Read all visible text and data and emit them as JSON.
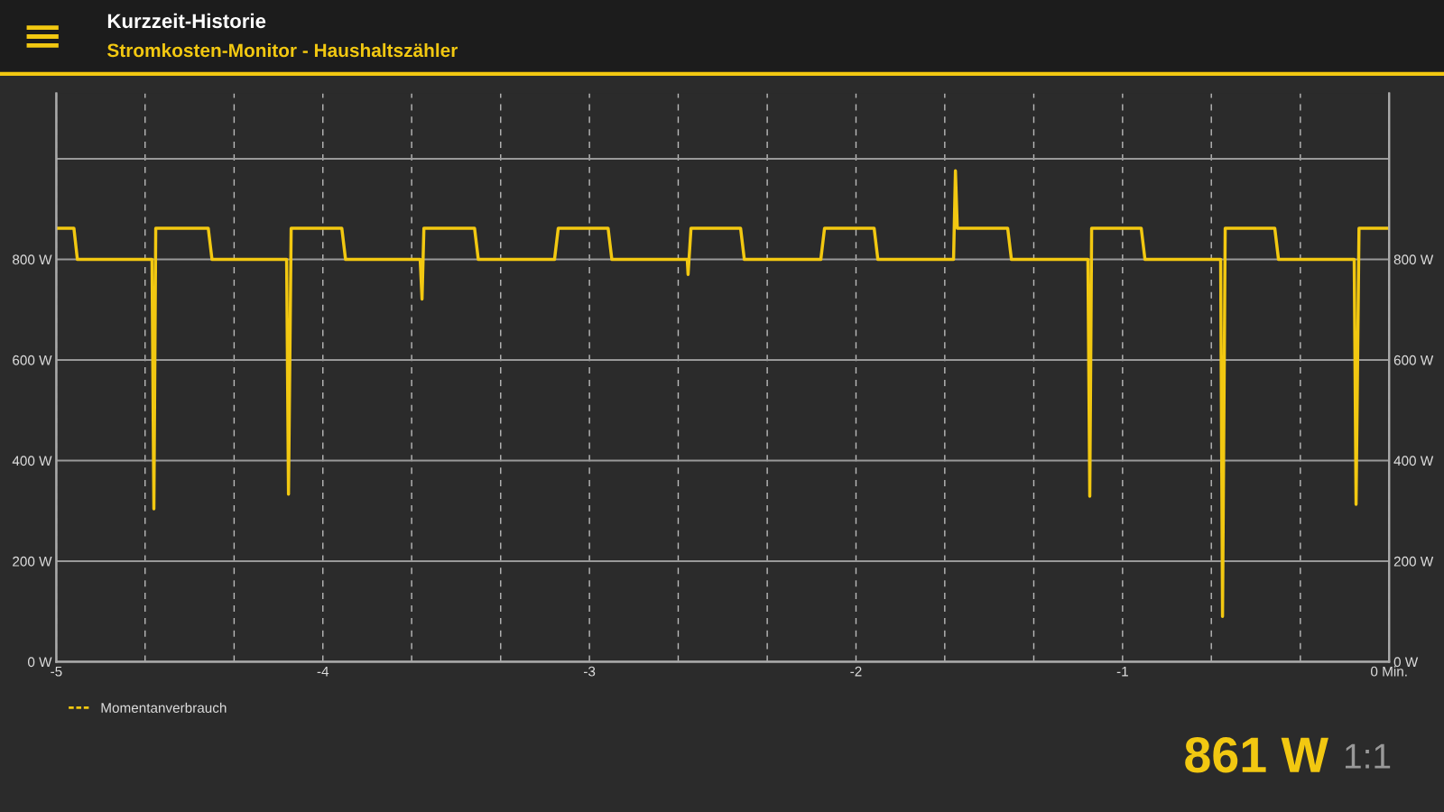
{
  "chart_data": {
    "type": "line",
    "title": "Kurzzeit-Historie",
    "subtitle": "Stromkosten-Monitor - Haushaltszähler",
    "x": [
      -5.0,
      -4.934,
      -4.921,
      -4.641,
      -4.634,
      -4.627,
      -4.43,
      -4.416,
      -4.136,
      -4.129,
      -4.119,
      -3.929,
      -3.915,
      -3.635,
      -3.628,
      -3.621,
      -3.431,
      -3.417,
      -3.131,
      -3.117,
      -2.93,
      -2.916,
      -2.633,
      -2.63,
      -2.619,
      -2.433,
      -2.419,
      -2.132,
      -2.118,
      -1.932,
      -1.918,
      -1.634,
      -1.627,
      -1.62,
      -1.431,
      -1.417,
      -1.13,
      -1.123,
      -1.116,
      -0.93,
      -0.916,
      -0.632,
      -0.625,
      -0.615,
      -0.429,
      -0.415,
      -0.131,
      -0.124,
      -0.113,
      0.0
    ],
    "series": [
      {
        "name": "Momentanverbrauch",
        "color": "#f2c811",
        "values": [
          862,
          862,
          800,
          800,
          304,
          862,
          862,
          800,
          800,
          333,
          862,
          862,
          800,
          800,
          721,
          862,
          862,
          800,
          800,
          862,
          862,
          800,
          800,
          770,
          862,
          862,
          800,
          800,
          862,
          862,
          800,
          800,
          976,
          862,
          862,
          800,
          800,
          329,
          862,
          862,
          800,
          800,
          90,
          862,
          862,
          800,
          800,
          313,
          862,
          862
        ]
      }
    ],
    "xlim": [
      -5,
      0
    ],
    "xticks": [
      -5,
      {
        "value": -4.667,
        "label": null
      },
      {
        "value": -4.333,
        "label": null
      },
      -4,
      {
        "value": -3.667,
        "label": null
      },
      {
        "value": -3.333,
        "label": null
      },
      -3,
      {
        "value": -2.667,
        "label": null
      },
      {
        "value": -2.333,
        "label": null
      },
      -2,
      {
        "value": -1.667,
        "label": null
      },
      {
        "value": -1.333,
        "label": null
      },
      -1,
      {
        "value": -0.667,
        "label": null
      },
      {
        "value": -0.333,
        "label": null
      },
      {
        "value": 0,
        "label": "0 Min."
      }
    ],
    "ylim": [
      0,
      1130
    ],
    "yticks": [
      {
        "value": 0,
        "label": "0 W"
      },
      {
        "value": 200,
        "label": "200 W"
      },
      {
        "value": 400,
        "label": "400 W"
      },
      {
        "value": 600,
        "label": "600 W"
      },
      {
        "value": 800,
        "label": "800 W"
      },
      {
        "value": 1000,
        "label": null
      }
    ],
    "y2lim": [
      0,
      1130
    ],
    "y2ticks": [
      {
        "value": 0,
        "label": "0 W"
      },
      {
        "value": 200,
        "label": "200 W"
      },
      {
        "value": 400,
        "label": "400 W"
      },
      {
        "value": 600,
        "label": "600 W"
      },
      {
        "value": 800,
        "label": "800 W"
      },
      {
        "value": 1000,
        "label": null
      }
    ],
    "grid": true,
    "legend": "bottom left",
    "marker": "none",
    "line_style": "solid",
    "annotations": [
      "861 W",
      "1:1"
    ]
  }
}
